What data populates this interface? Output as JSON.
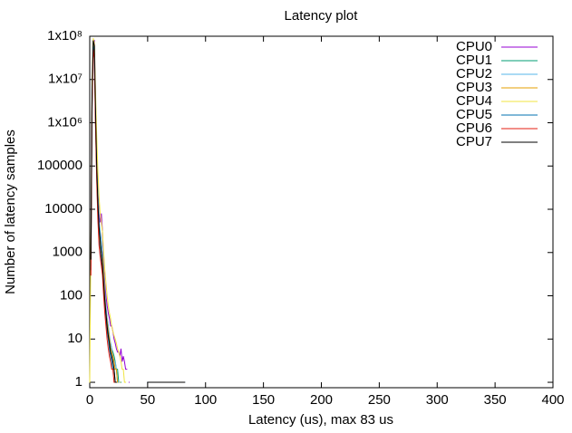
{
  "chart_data": {
    "type": "line",
    "title": "Latency plot",
    "xlabel": "Latency (us), max 83 us",
    "ylabel": "Number of latency samples",
    "log_y": true,
    "step": true,
    "grid": false,
    "legend": "top-right",
    "xlim": [
      0,
      400
    ],
    "xticks": [
      0,
      50,
      100,
      150,
      200,
      250,
      300,
      350,
      400
    ],
    "ylim": [
      0.75,
      100000000
    ],
    "yticks": [
      1,
      10,
      100,
      1000,
      10000,
      100000,
      {
        "value": 1000000,
        "label": "1x10⁶"
      },
      {
        "value": 10000000,
        "label": "1x10⁷"
      },
      {
        "value": 100000000,
        "label": "1x10⁸"
      }
    ],
    "x": [
      0,
      1,
      2,
      3,
      4,
      5,
      6,
      7,
      8,
      9,
      10,
      11,
      12,
      13,
      14,
      15,
      16,
      17,
      18,
      19,
      20,
      21,
      22,
      23,
      24,
      25,
      26,
      27,
      28,
      29,
      30,
      31,
      32,
      33,
      34,
      35,
      36,
      37,
      38,
      39,
      40,
      50,
      65,
      82
    ],
    "series": [
      {
        "name": "CPU0",
        "color": "#9400d3",
        "values": [
          null,
          1000,
          5000000,
          80000000,
          80000000,
          3000000,
          200000,
          30000,
          8000,
          5000,
          8000,
          3000,
          600,
          200,
          100,
          60,
          40,
          30,
          20,
          20,
          15,
          10,
          8,
          6,
          5,
          5,
          4,
          6,
          3,
          4,
          3,
          2,
          2,
          null,
          1,
          null,
          null,
          null,
          null,
          null,
          null,
          null,
          1,
          null
        ]
      },
      {
        "name": "CPU1",
        "color": "#009e73",
        "values": [
          null,
          500,
          3000000,
          60000000,
          50000000,
          2000000,
          100000,
          20000,
          5000,
          2000,
          1000,
          800,
          300,
          100,
          50,
          30,
          20,
          10,
          8,
          6,
          5,
          4,
          3,
          2,
          2,
          1,
          null,
          1,
          null,
          null,
          null,
          null,
          null,
          null,
          null,
          null,
          null,
          null,
          null,
          null,
          null,
          null,
          null,
          null
        ]
      },
      {
        "name": "CPU2",
        "color": "#56b4e9",
        "values": [
          null,
          800,
          4000000,
          70000000,
          60000000,
          2000000,
          150000,
          25000,
          6000,
          3000,
          2000,
          1000,
          400,
          150,
          60,
          30,
          20,
          12,
          8,
          6,
          4,
          3,
          3,
          2,
          1,
          1,
          null,
          null,
          null,
          null,
          null,
          null,
          null,
          null,
          null,
          null,
          null,
          null,
          null,
          null,
          null,
          1,
          null,
          null
        ]
      },
      {
        "name": "CPU3",
        "color": "#e69f00",
        "values": [
          null,
          600,
          4000000,
          70000000,
          50000000,
          1000000,
          80000,
          10000,
          3000,
          1500,
          1000,
          700,
          300,
          100,
          40,
          25,
          15,
          10,
          6,
          5,
          4,
          3,
          2,
          2,
          1,
          null,
          1,
          null,
          null,
          null,
          null,
          null,
          null,
          null,
          null,
          null,
          null,
          null,
          null,
          null,
          null,
          null,
          null,
          null
        ]
      },
      {
        "name": "CPU4",
        "color": "#f0e442",
        "values": [
          1,
          2000,
          8000000,
          90000000,
          70000000,
          5000000,
          500000,
          80000,
          20000,
          8000,
          5000,
          3000,
          1000,
          400,
          200,
          100,
          60,
          40,
          30,
          20,
          15,
          12,
          10,
          8,
          6,
          5,
          4,
          3,
          2,
          2,
          1,
          1,
          null,
          null,
          null,
          null,
          null,
          null,
          null,
          null,
          null,
          null,
          1,
          null
        ]
      },
      {
        "name": "CPU5",
        "color": "#0072b2",
        "values": [
          null,
          400,
          3000000,
          60000000,
          40000000,
          1000000,
          60000,
          8000,
          2000,
          1000,
          600,
          400,
          150,
          60,
          30,
          15,
          10,
          6,
          4,
          3,
          2,
          2,
          1,
          1,
          null,
          null,
          null,
          null,
          null,
          null,
          null,
          null,
          null,
          null,
          null,
          null,
          null,
          null,
          null,
          null,
          null,
          1,
          null,
          1
        ]
      },
      {
        "name": "CPU6",
        "color": "#e51e10",
        "values": [
          null,
          300,
          2000000,
          50000000,
          30000000,
          800000,
          50000,
          6000,
          1500,
          800,
          500,
          300,
          100,
          40,
          20,
          10,
          6,
          4,
          3,
          2,
          2,
          1,
          1,
          null,
          null,
          null,
          null,
          null,
          null,
          null,
          null,
          null,
          null,
          null,
          null,
          null,
          null,
          null,
          null,
          null,
          null,
          null,
          null,
          null
        ]
      },
      {
        "name": "CPU7",
        "color": "#000000",
        "values": [
          null,
          700,
          5000000,
          80000000,
          60000000,
          2000000,
          100000,
          15000,
          4000,
          2000,
          1000,
          500,
          200,
          80,
          40,
          20,
          12,
          8,
          5,
          4,
          3,
          2,
          1,
          1,
          null,
          null,
          null,
          null,
          null,
          null,
          null,
          null,
          null,
          null,
          null,
          null,
          null,
          null,
          null,
          null,
          null,
          1,
          1,
          1
        ]
      }
    ]
  }
}
